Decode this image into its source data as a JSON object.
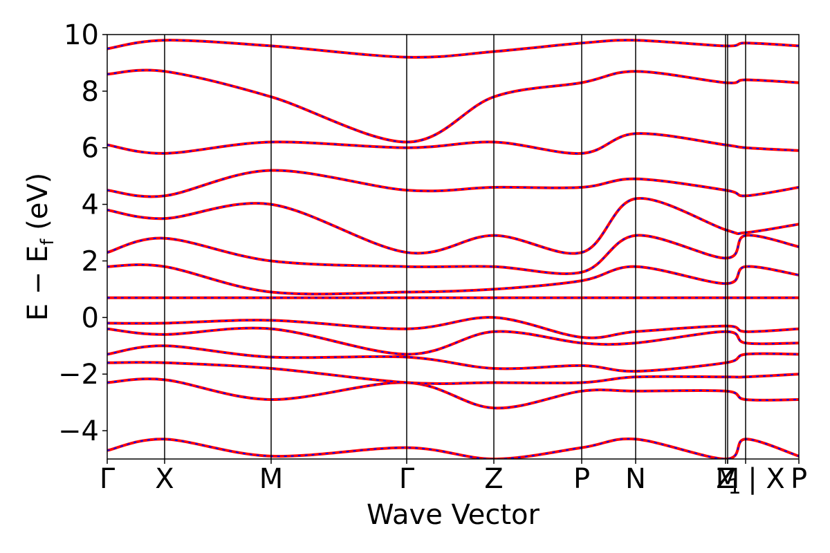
{
  "chart_data": {
    "type": "line",
    "title": "",
    "xlabel": "Wave Vector",
    "ylabel": "E − E",
    "ylabel_sub": "f",
    "ylabel_unit": " (eV)",
    "ylim": [
      -5,
      10
    ],
    "yticks": [
      -4,
      -2,
      0,
      2,
      4,
      6,
      8,
      10
    ],
    "ytick_labels": [
      "−4",
      "−2",
      "0",
      "2",
      "4",
      "6",
      "8",
      "10"
    ],
    "xlim": [
      0,
      1
    ],
    "kpoints": [
      {
        "label": "Γ",
        "x": 0.0
      },
      {
        "label": "X",
        "x": 0.083
      },
      {
        "label": "M",
        "x": 0.237
      },
      {
        "label": "Γ",
        "x": 0.433
      },
      {
        "label": "Z",
        "x": 0.559
      },
      {
        "label": "P",
        "x": 0.686
      },
      {
        "label": "N",
        "x": 0.764
      },
      {
        "label": "Z",
        "x": 0.894
      },
      {
        "label": "M",
        "x": 0.897
      },
      {
        "label": "1",
        "x": 0.897
      },
      {
        "label": "| X",
        "x": 0.923
      },
      {
        "label": "P",
        "x": 1.0
      }
    ],
    "grid": false,
    "legend": "none",
    "series_colors": [
      "#ff0000",
      "#0000ff"
    ],
    "series_styles": [
      "solid",
      "dashed"
    ],
    "series": [
      {
        "name": "",
        "x": [
          0.0,
          0.083,
          0.237,
          0.433,
          0.559,
          0.686,
          0.764,
          0.894,
          0.923,
          1.0
        ],
        "values": [
          -4.7,
          -4.3,
          -4.9,
          -4.6,
          -5.0,
          -4.6,
          -4.3,
          -5.0,
          -4.3,
          -4.9
        ]
      },
      {
        "name": "",
        "x": [
          0.0,
          0.083,
          0.237,
          0.433,
          0.559,
          0.686,
          0.764,
          0.894,
          0.923,
          1.0
        ],
        "values": [
          -2.3,
          -2.2,
          -2.9,
          -2.3,
          -3.2,
          -2.6,
          -2.6,
          -2.6,
          -2.9,
          -2.9
        ]
      },
      {
        "name": "",
        "x": [
          0.0,
          0.083,
          0.237,
          0.433,
          0.559,
          0.686,
          0.764,
          0.894,
          0.923,
          1.0
        ],
        "values": [
          -1.6,
          -1.6,
          -1.8,
          -2.3,
          -2.3,
          -2.3,
          -2.1,
          -2.1,
          -2.1,
          -2.0
        ]
      },
      {
        "name": "",
        "x": [
          0.0,
          0.083,
          0.237,
          0.433,
          0.559,
          0.686,
          0.764,
          0.894,
          0.923,
          1.0
        ],
        "values": [
          -1.3,
          -1.0,
          -1.4,
          -1.4,
          -1.8,
          -1.7,
          -1.9,
          -1.6,
          -1.3,
          -1.3
        ]
      },
      {
        "name": "",
        "x": [
          0.0,
          0.083,
          0.237,
          0.433,
          0.559,
          0.686,
          0.764,
          0.894,
          0.923,
          1.0
        ],
        "values": [
          -0.4,
          -0.6,
          -0.4,
          -1.3,
          -0.5,
          -0.9,
          -0.9,
          -0.5,
          -0.9,
          -0.9
        ]
      },
      {
        "name": "",
        "x": [
          0.0,
          0.083,
          0.237,
          0.433,
          0.559,
          0.686,
          0.764,
          0.894,
          0.923,
          1.0
        ],
        "values": [
          -0.2,
          -0.2,
          -0.1,
          -0.4,
          0.0,
          -0.7,
          -0.5,
          -0.3,
          -0.5,
          -0.4
        ]
      },
      {
        "name": "",
        "x": [
          0.0,
          0.083,
          0.237,
          0.433,
          0.559,
          0.686,
          0.764,
          0.894,
          0.923,
          1.0
        ],
        "values": [
          0.7,
          0.7,
          0.7,
          0.7,
          0.7,
          0.7,
          0.7,
          0.7,
          0.7,
          0.7
        ]
      },
      {
        "name": "",
        "x": [
          0.0,
          0.083,
          0.237,
          0.433,
          0.559,
          0.686,
          0.764,
          0.894,
          0.923,
          1.0
        ],
        "values": [
          1.8,
          1.8,
          0.9,
          0.9,
          1.0,
          1.3,
          1.8,
          1.2,
          1.8,
          1.5
        ]
      },
      {
        "name": "",
        "x": [
          0.0,
          0.083,
          0.237,
          0.433,
          0.559,
          0.686,
          0.764,
          0.894,
          0.923,
          1.0
        ],
        "values": [
          2.3,
          2.8,
          2.0,
          1.8,
          1.8,
          1.6,
          2.9,
          2.1,
          2.9,
          2.5
        ]
      },
      {
        "name": "",
        "x": [
          0.0,
          0.083,
          0.237,
          0.433,
          0.559,
          0.686,
          0.764,
          0.894,
          0.923,
          1.0
        ],
        "values": [
          3.8,
          3.5,
          4.0,
          2.3,
          2.9,
          2.3,
          4.2,
          3.1,
          3.0,
          3.3
        ]
      },
      {
        "name": "",
        "x": [
          0.0,
          0.083,
          0.237,
          0.433,
          0.559,
          0.686,
          0.764,
          0.894,
          0.923,
          1.0
        ],
        "values": [
          4.5,
          4.3,
          5.2,
          4.5,
          4.6,
          4.6,
          4.9,
          4.5,
          4.3,
          4.6
        ]
      },
      {
        "name": "",
        "x": [
          0.0,
          0.083,
          0.237,
          0.433,
          0.559,
          0.686,
          0.764,
          0.894,
          0.923,
          1.0
        ],
        "values": [
          6.1,
          5.8,
          6.2,
          6.0,
          6.2,
          5.8,
          6.5,
          6.1,
          6.0,
          5.9
        ]
      },
      {
        "name": "",
        "x": [
          0.0,
          0.083,
          0.237,
          0.433,
          0.559,
          0.686,
          0.764,
          0.894,
          0.923,
          1.0
        ],
        "values": [
          8.6,
          8.7,
          7.8,
          6.2,
          7.8,
          8.3,
          8.7,
          8.3,
          8.4,
          8.3
        ]
      },
      {
        "name": "",
        "x": [
          0.0,
          0.083,
          0.237,
          0.433,
          0.559,
          0.686,
          0.764,
          0.894,
          0.923,
          1.0
        ],
        "values": [
          9.5,
          9.8,
          9.6,
          9.2,
          9.4,
          9.7,
          9.8,
          9.6,
          9.7,
          9.6
        ]
      }
    ]
  }
}
